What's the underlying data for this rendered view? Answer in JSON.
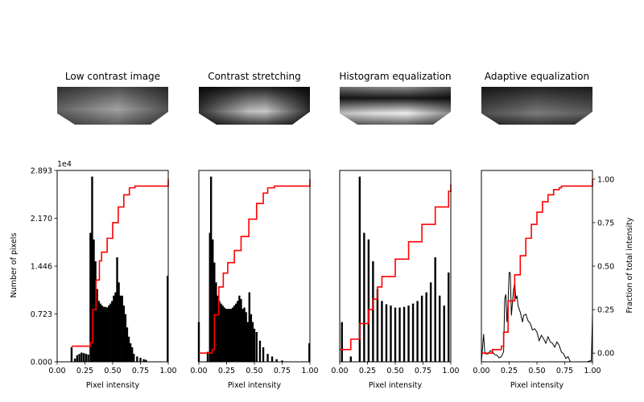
{
  "figure": {
    "y_multiplier": "1e4",
    "ylabel_left": "Number of pixels",
    "ylabel_right": "Fraction of total intensity",
    "xlabel": "Pixel intensity",
    "x_ticks": [
      "0.00",
      "0.25",
      "0.50",
      "0.75",
      "1.00"
    ],
    "y_ticks_left": [
      "0.000",
      "0.723",
      "1.446",
      "2.170",
      "2.893"
    ],
    "y_ticks_right": [
      "0.00",
      "0.25",
      "0.50",
      "0.75",
      "1.00"
    ]
  },
  "chart_data": [
    {
      "type": "bar",
      "title": "Low contrast image",
      "xlabel": "Pixel intensity",
      "ylabel": "Number of pixels",
      "xlim": [
        0,
        1
      ],
      "ylim": [
        0,
        2.893
      ],
      "ylim_right": [
        -0.05,
        1.05
      ],
      "histogram_x": [
        0.13,
        0.16,
        0.18,
        0.2,
        0.22,
        0.24,
        0.26,
        0.28,
        0.3,
        0.315,
        0.33,
        0.345,
        0.36,
        0.375,
        0.39,
        0.405,
        0.42,
        0.435,
        0.45,
        0.465,
        0.48,
        0.495,
        0.51,
        0.525,
        0.54,
        0.555,
        0.57,
        0.585,
        0.6,
        0.615,
        0.63,
        0.645,
        0.66,
        0.675,
        0.69,
        0.72,
        0.75,
        0.78,
        0.8,
        0.995
      ],
      "histogram_values": [
        0.22,
        0.05,
        0.1,
        0.12,
        0.14,
        0.13,
        0.12,
        0.11,
        1.95,
        2.8,
        1.85,
        1.52,
        1.1,
        0.92,
        0.88,
        0.85,
        0.83,
        0.83,
        0.82,
        0.85,
        0.88,
        0.92,
        1.0,
        1.05,
        1.58,
        1.2,
        1.0,
        1.0,
        0.85,
        0.72,
        0.52,
        0.38,
        0.28,
        0.22,
        0.12,
        0.08,
        0.06,
        0.04,
        0.03,
        1.3
      ],
      "cdf_x": [
        0.13,
        0.3,
        0.32,
        0.35,
        0.38,
        0.4,
        0.45,
        0.5,
        0.55,
        0.6,
        0.65,
        0.7,
        0.75,
        0.99,
        1.0
      ],
      "cdf_y": [
        0.04,
        0.06,
        0.25,
        0.42,
        0.53,
        0.58,
        0.66,
        0.75,
        0.84,
        0.91,
        0.95,
        0.96,
        0.96,
        0.96,
        1.0
      ]
    },
    {
      "type": "bar",
      "title": "Contrast stretching",
      "xlabel": "Pixel intensity",
      "xlim": [
        0,
        1
      ],
      "ylim": [
        0,
        2.893
      ],
      "histogram_x": [
        0.0,
        0.08,
        0.1,
        0.11,
        0.125,
        0.14,
        0.155,
        0.17,
        0.185,
        0.2,
        0.215,
        0.23,
        0.245,
        0.26,
        0.275,
        0.29,
        0.305,
        0.32,
        0.335,
        0.35,
        0.365,
        0.38,
        0.395,
        0.41,
        0.425,
        0.44,
        0.455,
        0.47,
        0.485,
        0.5,
        0.52,
        0.55,
        0.58,
        0.62,
        0.66,
        0.7,
        0.75,
        0.995
      ],
      "histogram_values": [
        0.6,
        0.15,
        1.95,
        2.8,
        1.85,
        1.5,
        1.2,
        1.0,
        0.92,
        0.88,
        0.85,
        0.82,
        0.8,
        0.8,
        0.8,
        0.8,
        0.82,
        0.85,
        0.88,
        0.92,
        1.0,
        0.95,
        0.8,
        0.82,
        0.75,
        0.6,
        1.05,
        0.72,
        0.6,
        0.5,
        0.45,
        0.32,
        0.22,
        0.12,
        0.08,
        0.04,
        0.02,
        0.28
      ],
      "cdf_x": [
        0.0,
        0.12,
        0.14,
        0.18,
        0.22,
        0.26,
        0.32,
        0.38,
        0.45,
        0.52,
        0.58,
        0.62,
        0.68,
        0.99,
        1.0
      ],
      "cdf_y": [
        0.0,
        0.02,
        0.22,
        0.38,
        0.46,
        0.52,
        0.59,
        0.67,
        0.77,
        0.86,
        0.92,
        0.95,
        0.96,
        0.96,
        1.0
      ]
    },
    {
      "type": "bar",
      "title": "Histogram equalization",
      "xlabel": "Pixel intensity",
      "xlim": [
        0,
        1
      ],
      "ylim": [
        0,
        2.893
      ],
      "histogram_x": [
        0.02,
        0.1,
        0.18,
        0.22,
        0.26,
        0.3,
        0.34,
        0.38,
        0.42,
        0.46,
        0.5,
        0.54,
        0.58,
        0.62,
        0.66,
        0.7,
        0.74,
        0.78,
        0.82,
        0.86,
        0.9,
        0.94,
        0.98
      ],
      "histogram_values": [
        0.6,
        0.08,
        2.8,
        1.95,
        1.85,
        1.52,
        1.1,
        0.92,
        0.87,
        0.85,
        0.82,
        0.82,
        0.83,
        0.85,
        0.88,
        0.92,
        1.0,
        1.05,
        1.2,
        1.58,
        1.0,
        0.85,
        1.35
      ],
      "cdf_x": [
        0.0,
        0.1,
        0.18,
        0.26,
        0.3,
        0.34,
        0.38,
        0.5,
        0.62,
        0.74,
        0.86,
        0.98,
        1.0
      ],
      "cdf_y": [
        0.02,
        0.08,
        0.17,
        0.25,
        0.31,
        0.38,
        0.44,
        0.54,
        0.64,
        0.74,
        0.84,
        0.93,
        0.97
      ]
    },
    {
      "type": "line",
      "title": "Adaptive equalization",
      "xlabel": "Pixel intensity",
      "ylabel_right": "Fraction of total intensity",
      "xlim": [
        0,
        1
      ],
      "ylim": [
        0,
        2.893
      ],
      "hist_x": [
        0.0,
        0.02,
        0.03,
        0.04,
        0.06,
        0.08,
        0.1,
        0.12,
        0.14,
        0.16,
        0.18,
        0.2,
        0.21,
        0.22,
        0.23,
        0.24,
        0.25,
        0.26,
        0.27,
        0.28,
        0.29,
        0.3,
        0.31,
        0.32,
        0.33,
        0.35,
        0.37,
        0.38,
        0.4,
        0.42,
        0.44,
        0.46,
        0.48,
        0.5,
        0.52,
        0.54,
        0.56,
        0.58,
        0.6,
        0.62,
        0.64,
        0.66,
        0.68,
        0.7,
        0.72,
        0.74,
        0.76,
        0.78,
        0.8,
        0.85,
        0.9,
        0.95,
        0.99,
        1.0
      ],
      "hist_y": [
        0.0,
        0.42,
        0.15,
        0.12,
        0.12,
        0.17,
        0.15,
        0.11,
        0.1,
        0.06,
        0.08,
        0.15,
        0.95,
        1.02,
        0.6,
        0.9,
        1.35,
        1.35,
        0.7,
        0.9,
        1.1,
        1.2,
        0.95,
        1.0,
        0.85,
        0.75,
        0.6,
        0.7,
        0.72,
        0.62,
        0.58,
        0.48,
        0.5,
        0.45,
        0.32,
        0.4,
        0.35,
        0.28,
        0.38,
        0.3,
        0.28,
        0.22,
        0.3,
        0.25,
        0.15,
        0.12,
        0.05,
        0.08,
        0.0,
        0.0,
        0.0,
        0.0,
        0.02,
        0.72
      ],
      "cdf_x": [
        0.0,
        0.1,
        0.18,
        0.2,
        0.24,
        0.3,
        0.35,
        0.4,
        0.45,
        0.5,
        0.55,
        0.6,
        0.65,
        0.7,
        0.72,
        0.99,
        1.0
      ],
      "cdf_y": [
        0.0,
        0.02,
        0.04,
        0.12,
        0.3,
        0.45,
        0.56,
        0.66,
        0.74,
        0.81,
        0.87,
        0.91,
        0.94,
        0.95,
        0.96,
        0.96,
        1.0
      ]
    }
  ]
}
